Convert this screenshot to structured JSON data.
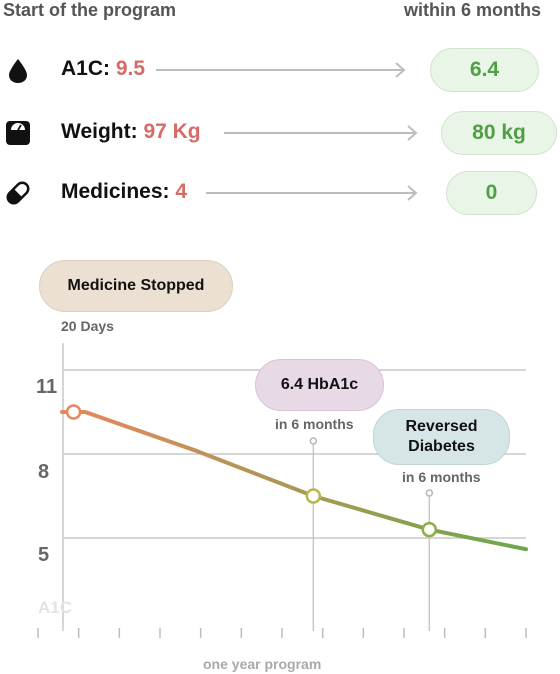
{
  "header": {
    "left": "Start of the program",
    "right": "within 6 months"
  },
  "metrics": [
    {
      "label": "A1C:",
      "value": "9.5",
      "target": "6.4",
      "icon": "blood-drop-icon"
    },
    {
      "label": "Weight:",
      "value": "97 Kg",
      "target": "80 kg",
      "icon": "scale-icon"
    },
    {
      "label": "Medicines:",
      "value": "4",
      "target": "0",
      "icon": "pill-icon"
    }
  ],
  "colors": {
    "start_value": "#d76b66",
    "target_value": "#4f9f45",
    "pill_bg": "#e9f5e6",
    "line_start": "#e8875d",
    "line_end": "#6aa94a"
  },
  "annotations": {
    "medicine_stopped": {
      "title": "Medicine Stopped",
      "note": "20 Days"
    },
    "hba1c": {
      "title": "6.4 HbA1c",
      "note": "in 6 months"
    },
    "reversed": {
      "title_line1": "Reversed",
      "title_line2": "Diabetes",
      "note": "in 6 months"
    }
  },
  "chart_data": {
    "type": "line",
    "title": "",
    "xlabel": "one year program",
    "ylabel": "A1C",
    "y_ticks": [
      "11",
      "8",
      "5"
    ],
    "ylim": [
      3,
      12
    ],
    "xlim": [
      0,
      12
    ],
    "grid": "horizontal",
    "series": [
      {
        "x": [
          0,
          0.6,
          3.5,
          6.5,
          9.5,
          12
        ],
        "y": [
          9.5,
          9.5,
          8.1,
          6.5,
          5.3,
          4.6
        ]
      }
    ],
    "markers": [
      {
        "x": 0.3,
        "y": 9.5
      },
      {
        "x": 6.5,
        "y": 6.5
      },
      {
        "x": 9.5,
        "y": 5.3
      }
    ]
  }
}
